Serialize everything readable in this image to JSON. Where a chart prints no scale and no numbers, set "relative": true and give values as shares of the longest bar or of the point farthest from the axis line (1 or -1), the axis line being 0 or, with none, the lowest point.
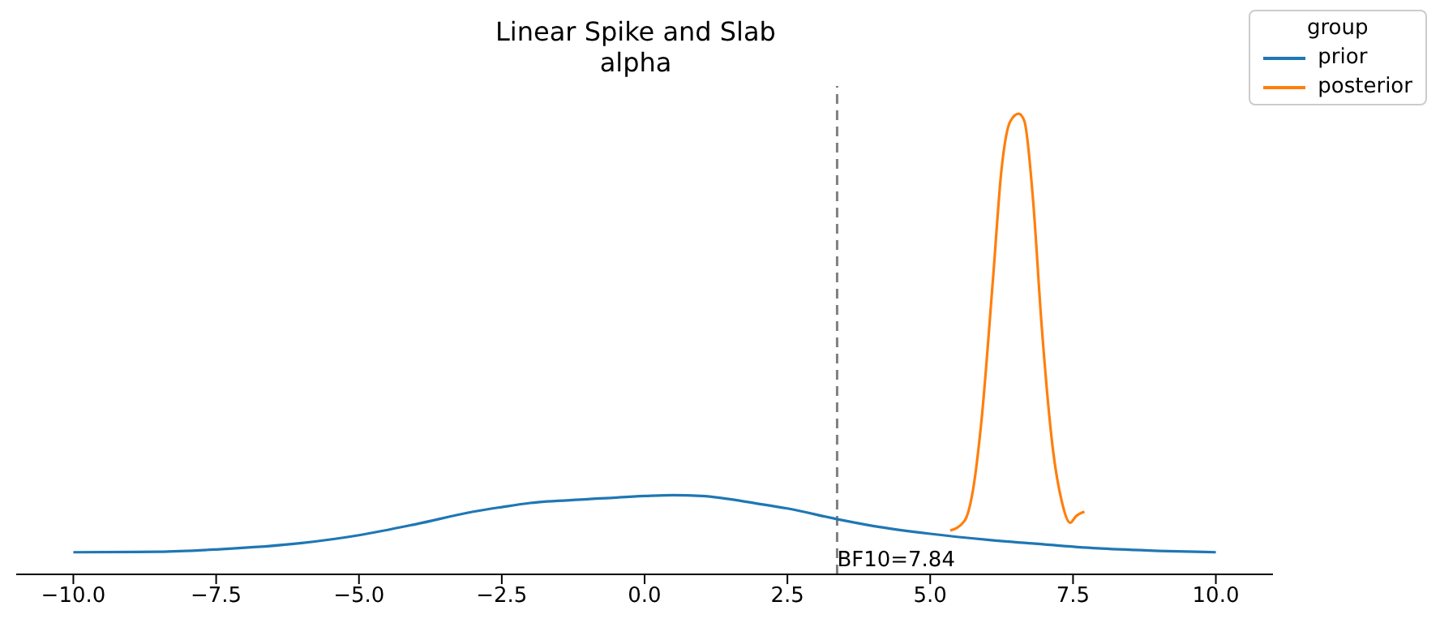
{
  "chart_data": {
    "type": "line",
    "title": "Linear Spike and Slab",
    "subtitle": "alpha",
    "relative": true,
    "legend_title": "group",
    "legend": "top right",
    "grid": false,
    "tick_labels": "x",
    "line_style": "solid",
    "marker": "none",
    "xlim": [
      -11,
      11
    ],
    "xticks": [
      {
        "value": -10,
        "label": "−10.0"
      },
      {
        "value": -7.5,
        "label": "−7.5"
      },
      {
        "value": -5,
        "label": "−5.0"
      },
      {
        "value": -2.5,
        "label": "−2.5"
      },
      {
        "value": 0,
        "label": "0.0"
      },
      {
        "value": 2.5,
        "label": "2.5"
      },
      {
        "value": 5,
        "label": "5.0"
      },
      {
        "value": 7.5,
        "label": "7.5"
      },
      {
        "value": 10,
        "label": "10.0"
      }
    ],
    "series": [
      {
        "name": "prior",
        "color": "#1f77b4",
        "x": [
          -10,
          -8.5,
          -7.5,
          -6,
          -5,
          -4,
          -3,
          -2.5,
          -2,
          -1,
          0,
          0.5,
          1,
          2,
          2.5,
          3.4,
          4,
          5,
          6,
          7,
          8,
          9,
          10
        ],
        "values": [
          0.048,
          0.049,
          0.054,
          0.068,
          0.085,
          0.109,
          0.136,
          0.146,
          0.155,
          0.163,
          0.17,
          0.172,
          0.17,
          0.153,
          0.143,
          0.119,
          0.105,
          0.088,
          0.075,
          0.065,
          0.056,
          0.051,
          0.048
        ]
      },
      {
        "name": "posterior",
        "color": "#ff7f0e",
        "x": [
          5.35,
          5.6,
          5.75,
          5.9,
          6.1,
          6.25,
          6.4,
          6.55,
          6.65,
          6.8,
          6.95,
          7.15,
          7.3,
          7.45,
          7.55,
          7.7
        ],
        "values": [
          0.095,
          0.116,
          0.184,
          0.337,
          0.643,
          0.881,
          0.983,
          1,
          0.983,
          0.813,
          0.541,
          0.269,
          0.16,
          0.112,
          0.126,
          0.136
        ]
      }
    ],
    "ref_lines": [
      {
        "axis": "x",
        "value": 3.37,
        "color": "#808080",
        "line_style": "dashed"
      }
    ],
    "annotations": [
      {
        "text": "BF10=7.84",
        "x": 3.37,
        "y": 0
      }
    ]
  }
}
